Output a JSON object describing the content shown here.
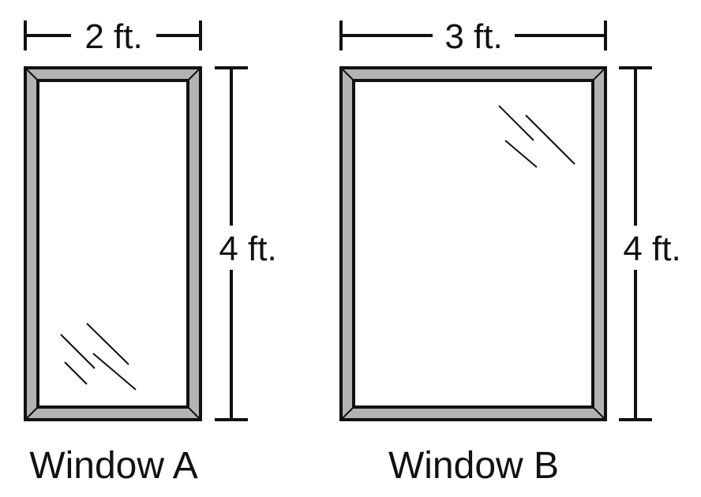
{
  "colors": {
    "frame_fill": "#b3b3b3",
    "stroke": "#111111",
    "glass": "#ffffff"
  },
  "window_a": {
    "width_label": "2 ft.",
    "height_label": "4 ft.",
    "caption": "Window A"
  },
  "window_b": {
    "width_label": "3 ft.",
    "height_label": "4 ft.",
    "caption": "Window B"
  }
}
